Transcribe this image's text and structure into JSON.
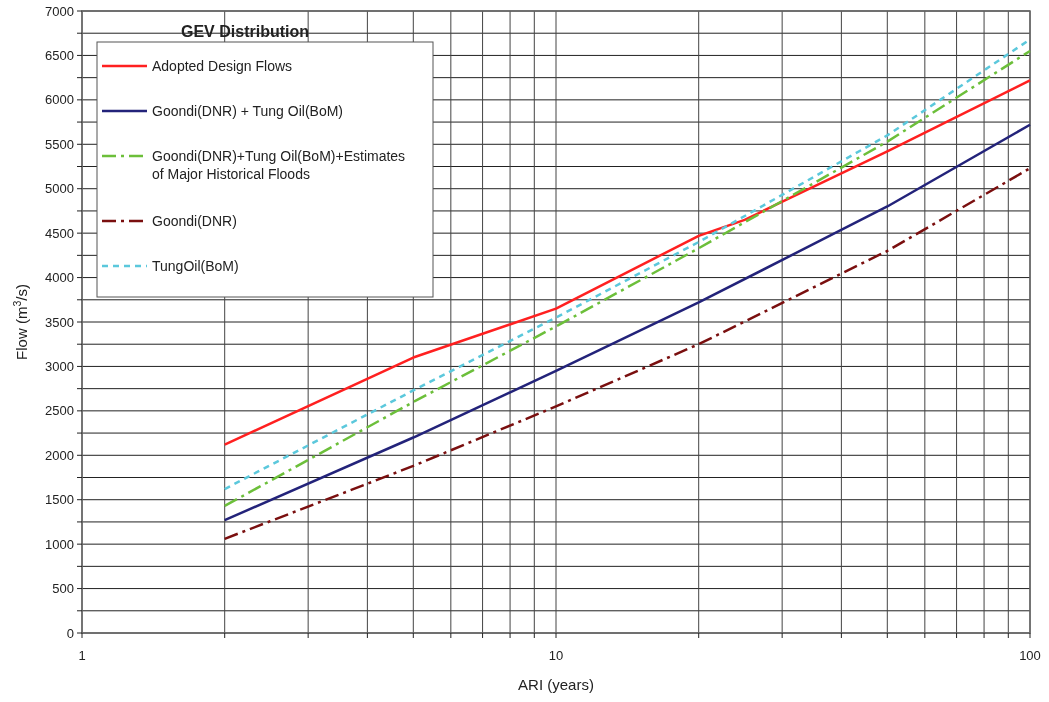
{
  "chart_data": {
    "type": "line",
    "title": "GEV Distribution",
    "xlabel": "ARI (years)",
    "ylabel": "Flow (m$^{3}$/s)",
    "log": "x",
    "x": [
      2,
      5,
      10,
      20,
      25,
      50,
      100
    ],
    "xlim": [
      1,
      100
    ],
    "xticks": [
      1,
      {
        "value": 2,
        "label": null
      },
      {
        "value": 3,
        "label": null
      },
      {
        "value": 4,
        "label": null
      },
      {
        "value": 5,
        "label": null
      },
      {
        "value": 6,
        "label": null
      },
      {
        "value": 7,
        "label": null
      },
      {
        "value": 8,
        "label": null
      },
      {
        "value": 9,
        "label": null
      },
      10,
      {
        "value": 20,
        "label": null
      },
      {
        "value": 30,
        "label": null
      },
      {
        "value": 40,
        "label": null
      },
      {
        "value": 50,
        "label": null
      },
      {
        "value": 60,
        "label": null
      },
      {
        "value": 70,
        "label": null
      },
      {
        "value": 80,
        "label": null
      },
      {
        "value": 90,
        "label": null
      },
      100
    ],
    "ylim": [
      0,
      7000
    ],
    "yticks": [
      0,
      {
        "value": 250,
        "label": null
      },
      500,
      {
        "value": 750,
        "label": null
      },
      1000,
      {
        "value": 1250,
        "label": null
      },
      1500,
      {
        "value": 1750,
        "label": null
      },
      2000,
      {
        "value": 2250,
        "label": null
      },
      2500,
      {
        "value": 2750,
        "label": null
      },
      3000,
      {
        "value": 3250,
        "label": null
      },
      3500,
      {
        "value": 3750,
        "label": null
      },
      4000,
      {
        "value": 4250,
        "label": null
      },
      4500,
      {
        "value": 4750,
        "label": null
      },
      5000,
      {
        "value": 5250,
        "label": null
      },
      5500,
      {
        "value": 5750,
        "label": null
      },
      6000,
      {
        "value": 6250,
        "label": null
      },
      6500,
      {
        "value": 6750,
        "label": null
      },
      7000
    ],
    "grid": true,
    "legend": "top left",
    "series": [
      {
        "name": "Adopted Design Flows",
        "color": "#ff2020",
        "line_style": "solid",
        "values": [
          2120,
          3100,
          3650,
          4470,
          4650,
          5420,
          6220
        ]
      },
      {
        "name": "Goondi(DNR) + Tung Oil(BoM)",
        "color": "#23237a",
        "line_style": "solid",
        "values": [
          1270,
          2200,
          2950,
          3720,
          null,
          4800,
          5720
        ]
      },
      {
        "name": "Goondi(DNR)+Tung Oil(BoM)+Estimates of Major Historical Floods",
        "color": "#6cbf3a",
        "line_style": "dashed",
        "values": [
          1430,
          2600,
          3450,
          4330,
          null,
          5530,
          6550
        ]
      },
      {
        "name": "Goondi(DNR)",
        "color": "#7a0f0f",
        "line_style": "dashed",
        "values": [
          1060,
          1880,
          2550,
          3250,
          null,
          4300,
          5230
        ]
      },
      {
        "name": "TungOil(BoM)",
        "color": "#5bc8dc",
        "line_style": "dotted",
        "values": [
          1620,
          2730,
          3550,
          4400,
          null,
          5600,
          6680
        ]
      }
    ]
  }
}
